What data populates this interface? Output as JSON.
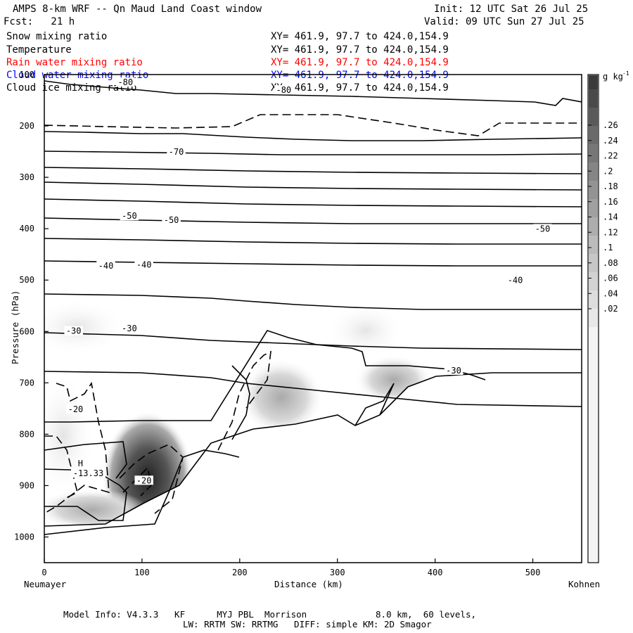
{
  "header": {
    "title": "AMPS 8-km WRF -- Qn Maud Land Coast window",
    "init": "Init: 12 UTC Sat 26 Jul 25",
    "fcst": "Fcst:   21 h",
    "valid": "Valid: 09 UTC Sun 27 Jul 25"
  },
  "legend": [
    {
      "name": "Snow mixing ratio",
      "xy": "XY= 461.9, 97.7 to 424.0,154.9",
      "color": "#000000"
    },
    {
      "name": "Temperature",
      "xy": "XY= 461.9, 97.7 to 424.0,154.9",
      "color": "#000000"
    },
    {
      "name": "Rain water mixing ratio",
      "xy": "XY= 461.9, 97.7 to 424.0,154.9",
      "color": "#ff0000"
    },
    {
      "name": "Cloud water mixing ratio",
      "xy": "XY= 461.9, 97.7 to 424.0,154.9",
      "color": "#0000ff"
    },
    {
      "name": "Cloud ice mixing ratio",
      "xy": "XY= 461.9, 97.7 to 424.0,154.9",
      "color": "#000000"
    }
  ],
  "chart_data": {
    "type": "cross-section contour",
    "xlabel": "Distance (km)",
    "ylabel": "Pressure (hPa)",
    "xlim": [
      0,
      550
    ],
    "ylim": [
      1050,
      100
    ],
    "x_ticks": [
      0,
      100,
      200,
      300,
      400,
      500
    ],
    "y_ticks": [
      100,
      200,
      300,
      400,
      500,
      600,
      700,
      800,
      900,
      1000
    ],
    "x_left_label": "Neumayer",
    "x_right_label": "Kohnen",
    "colorbar": {
      "unit": "g kg",
      "unit_exp": "-1",
      "ticks": [
        ".02",
        ".04",
        ".06",
        ".08",
        ".1",
        ".12",
        ".14",
        ".16",
        ".18",
        ".2",
        ".22",
        ".24",
        ".26"
      ]
    },
    "temperature_contours_labels": [
      {
        "text": "-80",
        "x": 83,
        "p": 118
      },
      {
        "text": "-80",
        "x": 245,
        "p": 133
      },
      {
        "text": "-70",
        "x": 135,
        "p": 253
      },
      {
        "text": "-50",
        "x": 87,
        "p": 378
      },
      {
        "text": "-50",
        "x": 130,
        "p": 386
      },
      {
        "text": "-50",
        "x": 510,
        "p": 403
      },
      {
        "text": "-40",
        "x": 63,
        "p": 475
      },
      {
        "text": "-40",
        "x": 102,
        "p": 473
      },
      {
        "text": "-40",
        "x": 482,
        "p": 503
      },
      {
        "text": "-30",
        "x": 30,
        "p": 602
      },
      {
        "text": "-30",
        "x": 87,
        "p": 597
      },
      {
        "text": "-30",
        "x": 419,
        "p": 679
      },
      {
        "text": "-20",
        "x": 32,
        "p": 754
      },
      {
        "text": "-20",
        "x": 102,
        "p": 893
      },
      {
        "text": "H",
        "x": 37,
        "p": 860
      },
      {
        "text": "-13.33",
        "x": 45,
        "p": 879
      }
    ]
  },
  "footer": {
    "line1": "Model Info: V4.3.3   KF      MYJ PBL  Morrison             8.0 km,  60 levels,",
    "line2": "LW: RRTM SW: RRTMG   DIFF: simple KM: 2D Smagor"
  }
}
